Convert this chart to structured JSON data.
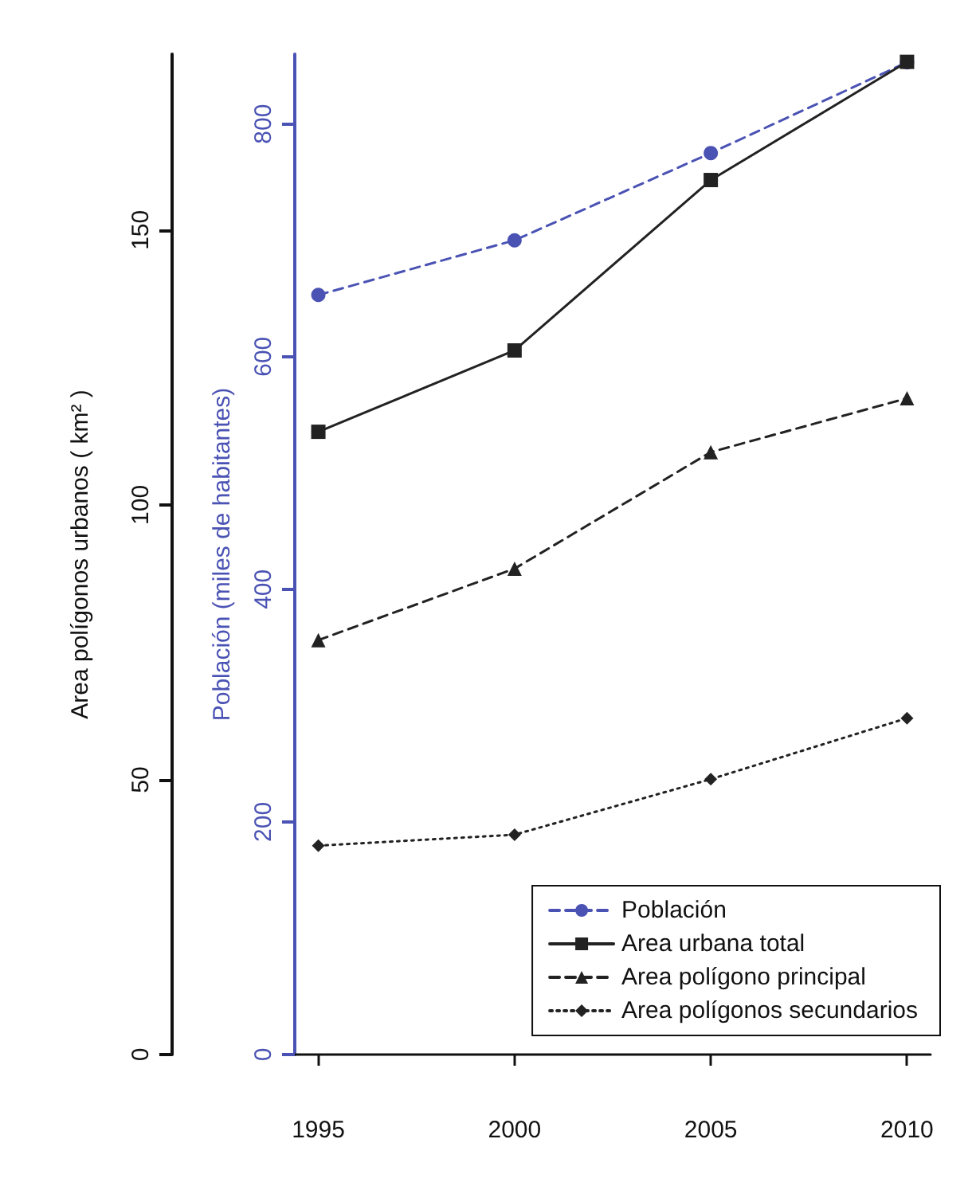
{
  "chart_data": {
    "type": "line",
    "ylabel": "Area polígonos urbanos ( km² )",
    "y2label": "Población (miles de habitantes)",
    "x": [
      1995,
      2000,
      2005,
      2010
    ],
    "xlim": [
      1994.4,
      2010.6
    ],
    "xticks": [
      1995,
      2000,
      2005,
      2010
    ],
    "ylim": [
      0,
      182
    ],
    "yticks": [
      0,
      50,
      100,
      150
    ],
    "y2lim": [
      0,
      860
    ],
    "y2ticks": [
      0,
      200,
      400,
      600,
      800
    ],
    "series": [
      {
        "name": "Población",
        "color": "#4a52b4",
        "axis": "y2",
        "marker": "circle",
        "line_style": "dashed",
        "values": [
          653,
          700,
          775,
          853
        ]
      },
      {
        "name": "Area urbana total",
        "color": "#222222",
        "marker": "square",
        "line_style": "solid",
        "values": [
          113.3,
          128.1,
          159.1,
          180.6
        ]
      },
      {
        "name": "Area polígono principal",
        "color": "#222222",
        "marker": "triangle",
        "line_style": "dashed",
        "values": [
          75.4,
          88.4,
          109.6,
          119.4
        ]
      },
      {
        "name": "Area polígonos secundarios",
        "color": "#222222",
        "marker": "diamond",
        "line_style": "dotted",
        "values": [
          38.0,
          40.0,
          50.1,
          61.2
        ]
      }
    ],
    "grid": false,
    "legend": "bottom right"
  }
}
